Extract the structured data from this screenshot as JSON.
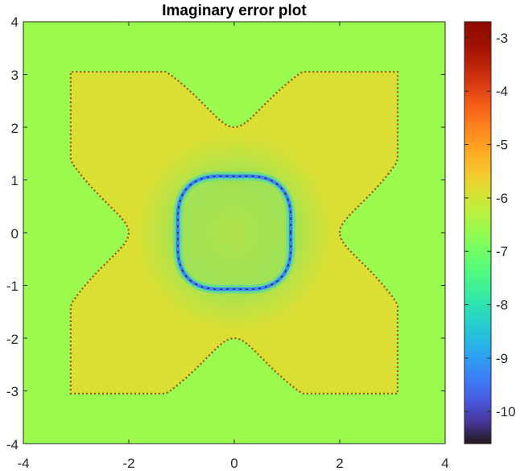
{
  "chart_data": {
    "type": "heatmap",
    "title": "Imaginary error plot",
    "xlabel": "",
    "ylabel": "",
    "xlim": [
      -4,
      4
    ],
    "ylim": [
      -4,
      4
    ],
    "x_ticks": [
      "-4",
      "-2",
      "0",
      "2",
      "4"
    ],
    "y_ticks": [
      "4",
      "3",
      "2",
      "1",
      "0",
      "-1",
      "-2",
      "-3",
      "-4"
    ],
    "colorbar": {
      "colormap": "turbo",
      "range": [
        -10.6,
        -2.7
      ],
      "ticks": [
        "-3",
        "-4",
        "-5",
        "-6",
        "-7",
        "-8",
        "-9",
        "-10"
      ]
    },
    "values": {
      "background": -6.6,
      "four_lobe_region": -5.9,
      "lobe_boundary_max": -2.8,
      "inner_ring": -9.3,
      "inner_ring_min": -10.5,
      "center": -7.0
    },
    "structures": {
      "lobes": [
        "upper-left",
        "upper-right",
        "lower-left",
        "lower-right"
      ],
      "inner_ring_radius": 1.15
    }
  }
}
